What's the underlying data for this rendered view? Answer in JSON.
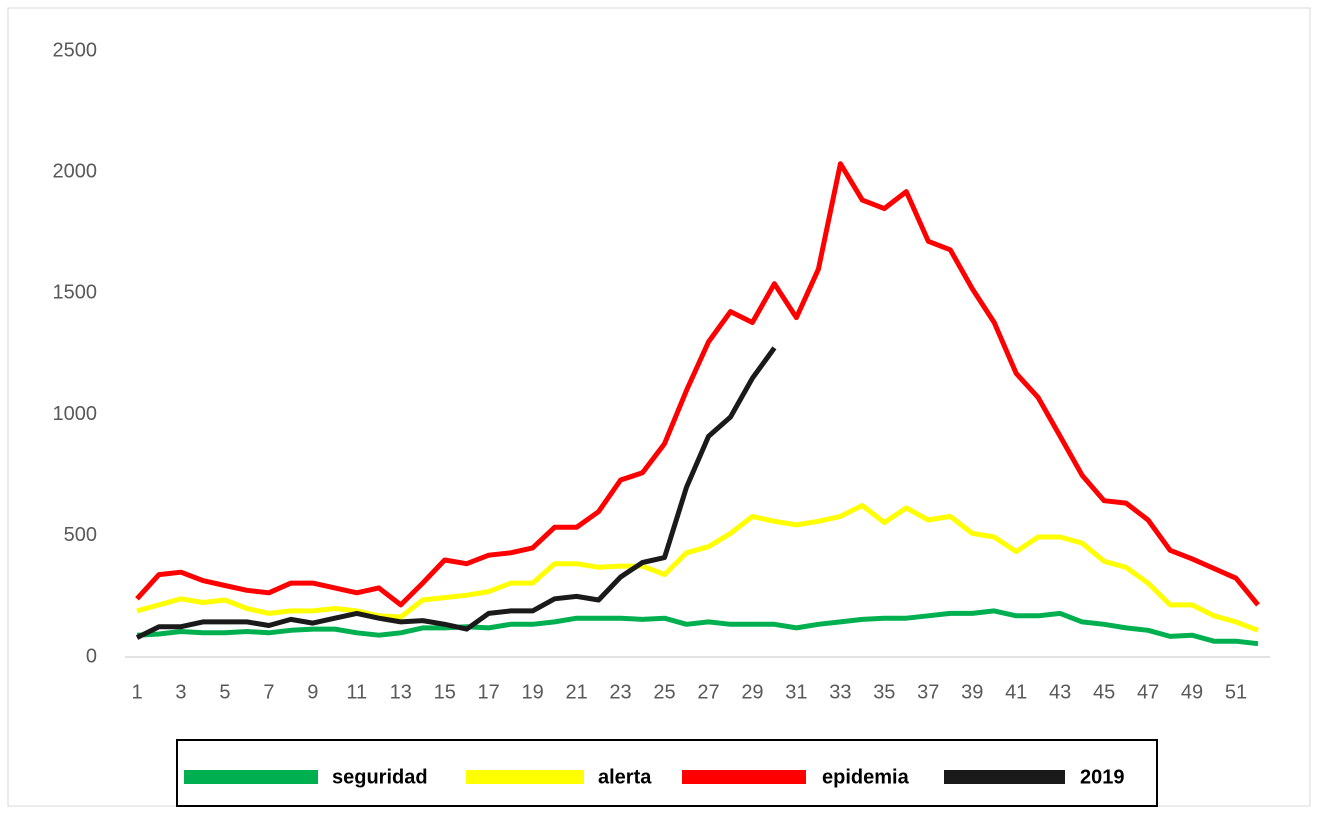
{
  "chart_data": {
    "type": "line",
    "categories": [
      "1",
      null,
      "3",
      null,
      "5",
      null,
      "7",
      null,
      "9",
      null,
      "11",
      null,
      "13",
      null,
      "15",
      null,
      "17",
      null,
      "19",
      null,
      "21",
      null,
      "23",
      null,
      "25",
      null,
      "27",
      null,
      "29",
      null,
      "31",
      null,
      "33",
      null,
      "35",
      null,
      "37",
      null,
      "39",
      null,
      "41",
      null,
      "43",
      null,
      "45",
      null,
      "47",
      null,
      "49",
      null,
      "51",
      null
    ],
    "series": [
      {
        "name": "seguridad",
        "color": "#00b050",
        "values": [
          90,
          95,
          105,
          100,
          100,
          105,
          100,
          110,
          115,
          115,
          100,
          90,
          100,
          120,
          120,
          125,
          120,
          135,
          135,
          145,
          160,
          160,
          160,
          155,
          160,
          135,
          145,
          135,
          135,
          135,
          120,
          135,
          145,
          155,
          160,
          160,
          170,
          180,
          180,
          190,
          170,
          170,
          180,
          145,
          135,
          120,
          110,
          85,
          90,
          65,
          65,
          55
        ]
      },
      {
        "name": "alerta",
        "color": "#ffff00",
        "values": [
          190,
          215,
          240,
          225,
          235,
          200,
          180,
          190,
          190,
          200,
          190,
          170,
          165,
          235,
          245,
          255,
          270,
          305,
          305,
          385,
          385,
          370,
          375,
          375,
          340,
          430,
          455,
          510,
          580,
          560,
          545,
          560,
          580,
          625,
          555,
          615,
          565,
          580,
          510,
          495,
          435,
          495,
          495,
          470,
          395,
          370,
          305,
          215,
          215,
          170,
          145,
          110
        ]
      },
      {
        "name": "epidemia",
        "color": "#ff0000",
        "values": [
          240,
          340,
          350,
          315,
          295,
          275,
          265,
          305,
          305,
          285,
          265,
          285,
          215,
          305,
          400,
          385,
          420,
          430,
          450,
          535,
          535,
          600,
          730,
          760,
          880,
          1100,
          1300,
          1425,
          1380,
          1540,
          1400,
          1600,
          2035,
          1885,
          1850,
          1920,
          1715,
          1680,
          1520,
          1380,
          1170,
          1070,
          910,
          750,
          645,
          635,
          565,
          440,
          405,
          365,
          325,
          215
        ]
      },
      {
        "name": "2019",
        "color": "#1a1a1a",
        "values": [
          80,
          125,
          125,
          145,
          145,
          145,
          130,
          155,
          140,
          160,
          180,
          160,
          145,
          150,
          135,
          115,
          180,
          190,
          190,
          240,
          250,
          235,
          330,
          390,
          410,
          700,
          910,
          990,
          1150,
          1275,
          null,
          null,
          null,
          null,
          null,
          null,
          null,
          null,
          null,
          null,
          null,
          null,
          null,
          null,
          null,
          null,
          null,
          null,
          null,
          null,
          null,
          null
        ]
      }
    ],
    "ylim": [
      0,
      2500
    ],
    "yticks": [
      0,
      500,
      1000,
      1500,
      2000,
      2500
    ],
    "grid": false,
    "legend": "bottom"
  }
}
